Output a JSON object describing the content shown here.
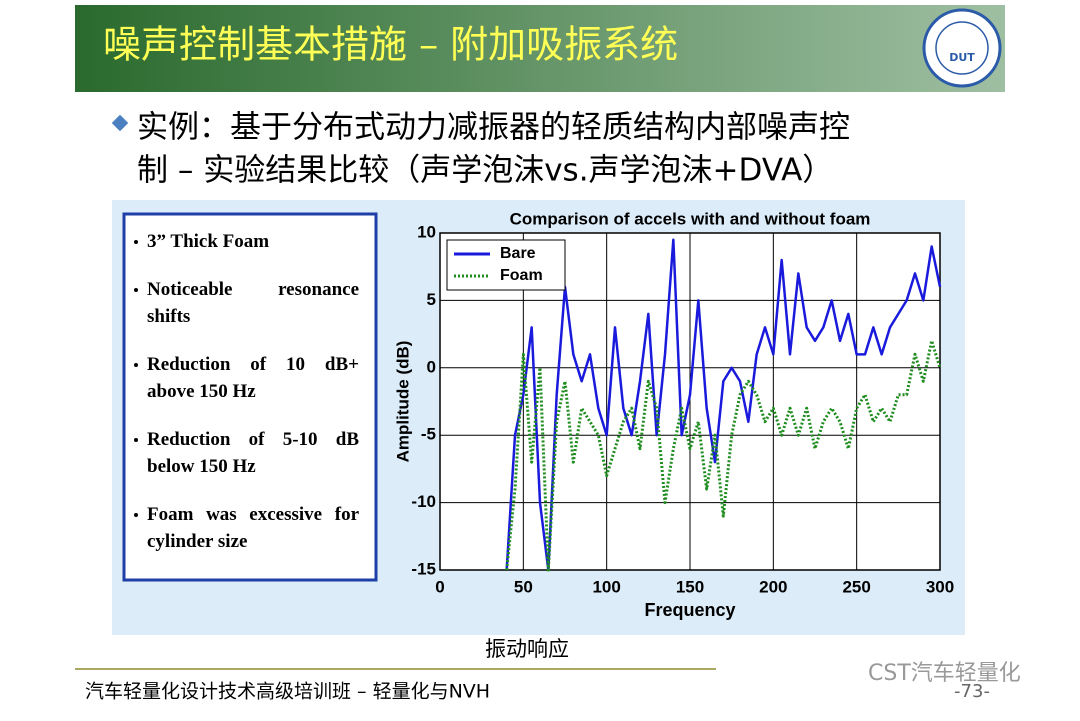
{
  "header": {
    "title": "噪声控制基本措施 – 附加吸振系统",
    "logo": "DUT"
  },
  "bullet": {
    "lines": [
      "实例：基于分布式动力减振器的轻质结构内部噪声控",
      "制 – 实验结果比较（声学泡沫vs.声学泡沫+DVA）"
    ]
  },
  "notes": [
    "3” Thick Foam",
    "Noticeable resonance shifts",
    "Reduction of 10 dB+ above 150 Hz",
    "Reduction of 5-10 dB below 150 Hz",
    "Foam was excessive for cylinder size"
  ],
  "chart_data": {
    "type": "line",
    "title": "Comparison of accels with and without foam",
    "x_label": "Frequency",
    "y_label": "Amplitude (dB)",
    "x": [
      40,
      45,
      50,
      55,
      60,
      65,
      70,
      75,
      80,
      85,
      90,
      95,
      100,
      105,
      110,
      115,
      120,
      125,
      130,
      135,
      140,
      145,
      150,
      155,
      160,
      165,
      170,
      175,
      180,
      185,
      190,
      195,
      200,
      205,
      210,
      215,
      220,
      225,
      230,
      235,
      240,
      245,
      250,
      255,
      260,
      265,
      270,
      275,
      280,
      285,
      290,
      295,
      300
    ],
    "series": [
      {
        "name": "Bare",
        "color": "#1a1adc",
        "style": "solid",
        "values": [
          -15,
          -5,
          -2,
          3,
          -10,
          -15,
          -2,
          6,
          1,
          -1,
          1,
          -3,
          -5,
          3,
          -3,
          -5,
          -1,
          4,
          -5,
          1,
          9.5,
          -5,
          -2,
          5,
          -3,
          -7,
          -1,
          0,
          -1,
          -4,
          1,
          3,
          1,
          8,
          1,
          7,
          3,
          2,
          3,
          5,
          2,
          4,
          1,
          1,
          3,
          1,
          3,
          4,
          5,
          7,
          5,
          9,
          6
        ]
      },
      {
        "name": "Foam",
        "color": "#1e8c1e",
        "style": "dotted",
        "values": [
          -15,
          -9,
          1,
          -7,
          0,
          -15,
          -4,
          -1,
          -7,
          -3,
          -4,
          -5,
          -8,
          -6,
          -4,
          -3,
          -6,
          -1,
          -3,
          -10,
          -6,
          -3,
          -6,
          -4,
          -9,
          -5,
          -11,
          -5,
          -2,
          -1,
          -2,
          -4,
          -3,
          -5,
          -3,
          -5,
          -3,
          -6,
          -4,
          -3,
          -4,
          -6,
          -3,
          -2,
          -4,
          -3,
          -4,
          -2,
          -2,
          1,
          -1,
          2,
          0
        ]
      }
    ],
    "xlim": [
      0,
      300
    ],
    "ylim": [
      -15,
      10
    ],
    "xticks": [
      0,
      50,
      100,
      150,
      200,
      250,
      300
    ],
    "yticks": [
      -15,
      -10,
      -5,
      0,
      5,
      10
    ],
    "grid": true,
    "legend": "upper-left"
  },
  "caption": "振动响应",
  "footer": {
    "text": "汽车轻量化设计技术高级培训班 – 轻量化与NVH",
    "page": "-73-",
    "watermark": "CST汽车轻量化"
  }
}
